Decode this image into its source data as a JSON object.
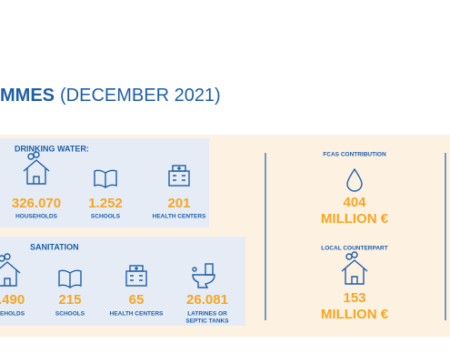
{
  "header": {
    "title_bold": "MMES",
    "title_rest": "(DECEMBER 2021)"
  },
  "drinking_water": {
    "title": "DRINKING WATER:",
    "items": [
      {
        "value": "326.070",
        "labels": [
          "HOUSEHOLDS"
        ]
      },
      {
        "value": "1.252",
        "labels": [
          "SCHOOLS"
        ]
      },
      {
        "value": "201",
        "labels": [
          "HEALTH CENTERS"
        ]
      }
    ]
  },
  "sanitation": {
    "title": "SANITATION",
    "items": [
      {
        "value": ".490",
        "labels": [
          "EHOLDS"
        ]
      },
      {
        "value": "215",
        "labels": [
          "SCHOOLS"
        ]
      },
      {
        "value": "65",
        "labels": [
          "HEALTH CENTERS"
        ]
      },
      {
        "value": "26.081",
        "labels": [
          "LATRINES OR",
          "SEPTIC TANKS"
        ]
      }
    ]
  },
  "funding": [
    {
      "title": "FCAS CONTRIBUTION",
      "amount": "404",
      "unit": "MILLION €"
    },
    {
      "title": "LOCAL COUNTERPART",
      "amount": "153",
      "unit": "MILLION €"
    }
  ]
}
